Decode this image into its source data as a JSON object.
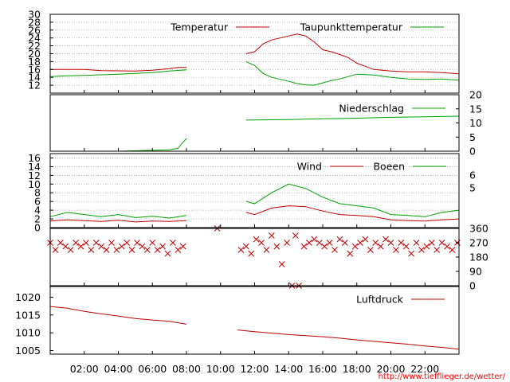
{
  "credit": "http://www.tiefflieger.de/wetter/",
  "colors": {
    "red": "#c00000",
    "green": "#00a000",
    "grid": "#a0a0a0"
  },
  "chart_data": [
    {
      "type": "line",
      "legend_placement": "top-right",
      "grid": true,
      "x_range_hours": [
        0,
        24
      ],
      "ylim": [
        10,
        30
      ],
      "y_ticks": [
        12,
        14,
        16,
        18,
        20,
        22,
        24,
        26,
        28,
        30
      ],
      "series": [
        {
          "name": "Temperatur",
          "color": "#c00000",
          "points": [
            [
              0,
              16.0
            ],
            [
              2,
              16.0
            ],
            [
              3,
              15.7
            ],
            [
              5,
              15.6
            ],
            [
              6,
              15.8
            ],
            [
              7,
              16.2
            ],
            [
              7.5,
              16.5
            ],
            [
              8,
              16.5
            ],
            [
              null,
              null
            ],
            [
              11.5,
              20.0
            ],
            [
              12,
              20.5
            ],
            [
              12.5,
              22.5
            ],
            [
              13,
              23.5
            ],
            [
              13.5,
              24.0
            ],
            [
              14,
              24.5
            ],
            [
              14.5,
              25.0
            ],
            [
              15,
              24.5
            ],
            [
              15.5,
              23.0
            ],
            [
              16,
              21.0
            ],
            [
              16.5,
              20.5
            ],
            [
              17,
              19.8
            ],
            [
              17.5,
              19.0
            ],
            [
              18,
              17.6
            ],
            [
              18.5,
              16.8
            ],
            [
              19,
              16.0
            ],
            [
              20,
              15.6
            ],
            [
              21,
              15.4
            ],
            [
              22,
              15.4
            ],
            [
              23,
              15.2
            ],
            [
              24,
              14.9
            ]
          ]
        },
        {
          "name": "Taupunkttemperatur",
          "color": "#00a000",
          "points": [
            [
              0,
              14.2
            ],
            [
              1,
              14.4
            ],
            [
              2,
              14.5
            ],
            [
              4,
              14.8
            ],
            [
              6,
              15.2
            ],
            [
              7,
              15.6
            ],
            [
              8,
              15.9
            ],
            [
              null,
              null
            ],
            [
              11.5,
              18.0
            ],
            [
              12,
              17.0
            ],
            [
              12.5,
              15.0
            ],
            [
              13,
              14.0
            ],
            [
              13.5,
              13.5
            ],
            [
              14,
              13.0
            ],
            [
              14.5,
              12.4
            ],
            [
              15,
              12.1
            ],
            [
              15.5,
              12.0
            ],
            [
              16,
              12.6
            ],
            [
              16.5,
              13.2
            ],
            [
              17,
              13.6
            ],
            [
              17.5,
              14.2
            ],
            [
              18,
              14.8
            ],
            [
              19,
              14.6
            ],
            [
              20,
              14.0
            ],
            [
              21,
              13.6
            ],
            [
              22,
              13.5
            ],
            [
              23,
              13.6
            ],
            [
              24,
              13.3
            ]
          ]
        }
      ]
    },
    {
      "type": "line",
      "legend_placement": "top-right",
      "grid": false,
      "x_range_hours": [
        0,
        24
      ],
      "ylim": [
        0,
        20
      ],
      "y_ticks": [
        0,
        5,
        10,
        15,
        20
      ],
      "series": [
        {
          "name": "Niederschlag",
          "color": "#00a000",
          "points": [
            [
              4,
              0.0
            ],
            [
              7,
              0.5
            ],
            [
              7.5,
              1.0
            ],
            [
              7.7,
              2.5
            ],
            [
              8,
              4.5
            ],
            [
              null,
              null
            ],
            [
              11.5,
              11.0
            ],
            [
              14,
              11.2
            ],
            [
              16,
              11.5
            ],
            [
              18,
              11.7
            ],
            [
              20,
              12.0
            ],
            [
              22,
              12.2
            ],
            [
              24,
              12.4
            ]
          ]
        }
      ]
    },
    {
      "type": "line",
      "legend_placement": "top-right",
      "grid": true,
      "x_range_hours": [
        0,
        24
      ],
      "ylim": [
        0,
        17
      ],
      "y_ticks": [
        0,
        2,
        4,
        6,
        8,
        10,
        12,
        14,
        16
      ],
      "y2_ticks": [
        5,
        6
      ],
      "series": [
        {
          "name": "Wind",
          "color": "#c00000",
          "points": [
            [
              0,
              1.5
            ],
            [
              1,
              1.8
            ],
            [
              2,
              1.6
            ],
            [
              3,
              1.4
            ],
            [
              4,
              1.7
            ],
            [
              5,
              1.3
            ],
            [
              6,
              1.5
            ],
            [
              7,
              1.4
            ],
            [
              8,
              1.6
            ],
            [
              null,
              null
            ],
            [
              11.5,
              3.5
            ],
            [
              12,
              3.0
            ],
            [
              13,
              4.5
            ],
            [
              14,
              5.0
            ],
            [
              15,
              4.8
            ],
            [
              16,
              3.8
            ],
            [
              17,
              3.0
            ],
            [
              18,
              2.8
            ],
            [
              19,
              2.5
            ],
            [
              20,
              1.8
            ],
            [
              21,
              1.6
            ],
            [
              22,
              1.5
            ],
            [
              23,
              1.8
            ],
            [
              24,
              2.0
            ]
          ]
        },
        {
          "name": "Boeen",
          "color": "#00a000",
          "points": [
            [
              0,
              2.5
            ],
            [
              1,
              3.5
            ],
            [
              2,
              3.0
            ],
            [
              3,
              2.5
            ],
            [
              4,
              3.0
            ],
            [
              5,
              2.3
            ],
            [
              6,
              2.6
            ],
            [
              7,
              2.2
            ],
            [
              8,
              2.8
            ],
            [
              null,
              null
            ],
            [
              11.5,
              6.0
            ],
            [
              12,
              5.5
            ],
            [
              13,
              8.0
            ],
            [
              14,
              10.0
            ],
            [
              15,
              9.0
            ],
            [
              16,
              7.0
            ],
            [
              17,
              5.5
            ],
            [
              18,
              5.0
            ],
            [
              19,
              4.5
            ],
            [
              20,
              3.0
            ],
            [
              21,
              2.8
            ],
            [
              22,
              2.5
            ],
            [
              23,
              3.5
            ],
            [
              24,
              4.0
            ]
          ]
        }
      ]
    },
    {
      "type": "scatter",
      "grid": false,
      "x_range_hours": [
        0,
        24
      ],
      "ylim": [
        0,
        360
      ],
      "y_ticks": [
        0,
        90,
        180,
        270,
        360
      ],
      "series": [
        {
          "color": "#c00000",
          "points": [
            [
              0.0,
              270
            ],
            [
              0.3,
              225
            ],
            [
              0.6,
              270
            ],
            [
              0.9,
              247
            ],
            [
              1.2,
              225
            ],
            [
              1.5,
              270
            ],
            [
              1.8,
              247
            ],
            [
              2.1,
              270
            ],
            [
              2.4,
              225
            ],
            [
              2.7,
              270
            ],
            [
              3.0,
              247
            ],
            [
              3.3,
              225
            ],
            [
              3.6,
              270
            ],
            [
              3.9,
              225
            ],
            [
              4.2,
              247
            ],
            [
              4.5,
              270
            ],
            [
              4.8,
              225
            ],
            [
              5.1,
              270
            ],
            [
              5.4,
              247
            ],
            [
              5.7,
              225
            ],
            [
              6.0,
              270
            ],
            [
              6.3,
              225
            ],
            [
              6.6,
              247
            ],
            [
              6.9,
              202
            ],
            [
              7.2,
              270
            ],
            [
              7.5,
              225
            ],
            [
              7.8,
              247
            ],
            [
              9.8,
              360
            ],
            [
              11.2,
              225
            ],
            [
              11.5,
              247
            ],
            [
              11.8,
              202
            ],
            [
              12.1,
              292
            ],
            [
              12.4,
              270
            ],
            [
              12.7,
              225
            ],
            [
              13.0,
              315
            ],
            [
              13.3,
              247
            ],
            [
              13.6,
              135
            ],
            [
              13.9,
              270
            ],
            [
              14.2,
              0
            ],
            [
              14.4,
              315
            ],
            [
              14.6,
              0
            ],
            [
              14.9,
              247
            ],
            [
              15.2,
              270
            ],
            [
              15.5,
              292
            ],
            [
              15.8,
              270
            ],
            [
              16.1,
              247
            ],
            [
              16.4,
              270
            ],
            [
              16.7,
              225
            ],
            [
              17.0,
              292
            ],
            [
              17.3,
              270
            ],
            [
              17.6,
              202
            ],
            [
              17.9,
              247
            ],
            [
              18.2,
              270
            ],
            [
              18.5,
              292
            ],
            [
              18.8,
              225
            ],
            [
              19.1,
              270
            ],
            [
              19.4,
              247
            ],
            [
              19.7,
              292
            ],
            [
              20.0,
              270
            ],
            [
              20.3,
              225
            ],
            [
              20.6,
              270
            ],
            [
              20.9,
              247
            ],
            [
              21.2,
              202
            ],
            [
              21.5,
              270
            ],
            [
              21.8,
              225
            ],
            [
              22.1,
              247
            ],
            [
              22.4,
              270
            ],
            [
              22.7,
              225
            ],
            [
              23.0,
              270
            ],
            [
              23.3,
              247
            ],
            [
              23.6,
              225
            ],
            [
              23.9,
              270
            ]
          ]
        }
      ]
    },
    {
      "type": "line",
      "legend_placement": "top-right",
      "grid": false,
      "x_range_hours": [
        0,
        24
      ],
      "ylim": [
        1004,
        1023
      ],
      "y_ticks": [
        1005,
        1010,
        1015,
        1020
      ],
      "x_tick_labels": [
        "02:00",
        "04:00",
        "06:00",
        "08:00",
        "10:00",
        "12:00",
        "14:00",
        "16:00",
        "18:00",
        "20:00",
        "22:00"
      ],
      "series": [
        {
          "name": "Luftdruck",
          "color": "#c00000",
          "points": [
            [
              0,
              1017.4
            ],
            [
              1,
              1016.9
            ],
            [
              2,
              1016.0
            ],
            [
              3,
              1015.3
            ],
            [
              4,
              1014.7
            ],
            [
              5,
              1014.0
            ],
            [
              6,
              1013.6
            ],
            [
              7,
              1013.2
            ],
            [
              8,
              1012.4
            ],
            [
              null,
              null
            ],
            [
              11,
              1010.8
            ],
            [
              12,
              1010.3
            ],
            [
              13,
              1009.9
            ],
            [
              14,
              1009.5
            ],
            [
              15,
              1009.2
            ],
            [
              16,
              1008.9
            ],
            [
              17,
              1008.5
            ],
            [
              18,
              1008.0
            ],
            [
              19,
              1007.6
            ],
            [
              20,
              1007.2
            ],
            [
              21,
              1006.8
            ],
            [
              22,
              1006.3
            ],
            [
              23,
              1005.9
            ],
            [
              24,
              1005.4
            ]
          ]
        }
      ]
    }
  ]
}
